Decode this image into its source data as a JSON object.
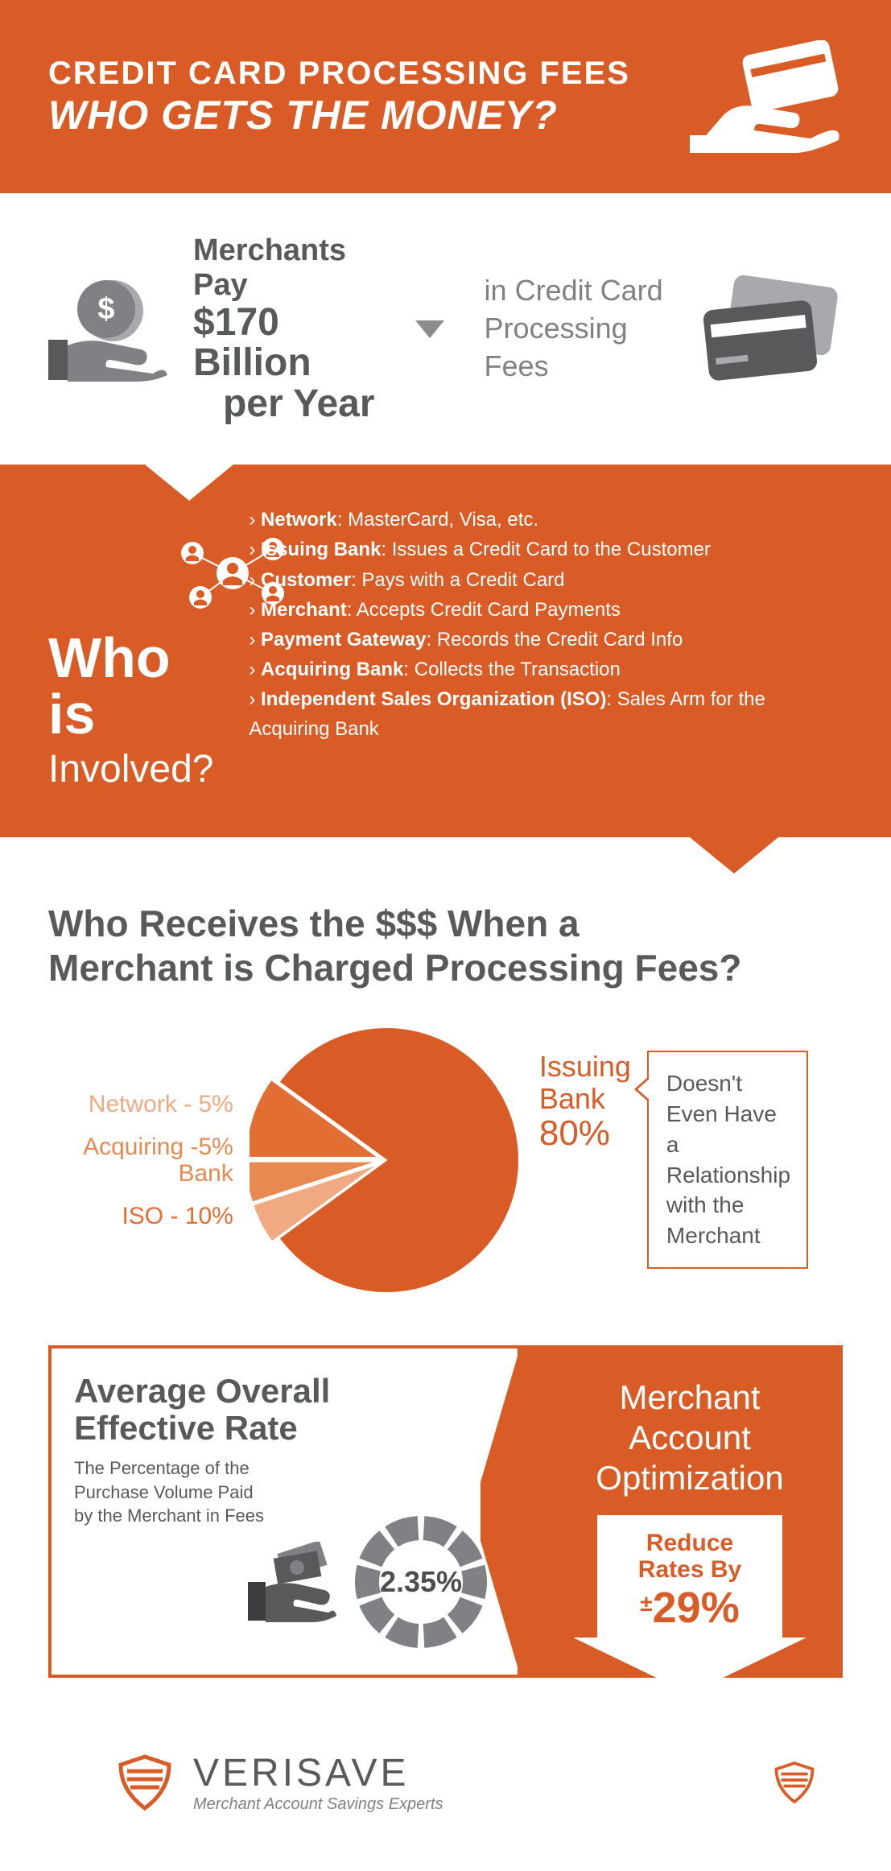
{
  "colors": {
    "orange": "#d95c27",
    "orange_light": "#e98952",
    "orange_lighter": "#f0a981",
    "orange_lightest": "#f7c9ae",
    "gray_dark": "#58595b",
    "gray_mid": "#808184",
    "gray_light": "#a7a9ac",
    "white": "#ffffff"
  },
  "header": {
    "line1": "CREDIT CARD PROCESSING FEES",
    "line2": "WHO GETS THE MONEY?"
  },
  "stat": {
    "line1": "Merchants Pay",
    "line2": "$170 Billion",
    "line3": "per Year",
    "right_line1": "in Credit Card",
    "right_line2": "Processing Fees"
  },
  "involved": {
    "title1": "Who is",
    "title2": "Involved?",
    "items": [
      {
        "term": "Network",
        "desc": ": MasterCard, Visa, etc."
      },
      {
        "term": "Issuing Bank",
        "desc": ": Issues a Credit Card to the Customer"
      },
      {
        "term": "Customer",
        "desc": ": Pays with a Credit Card"
      },
      {
        "term": "Merchant",
        "desc": ": Accepts Credit Card Payments"
      },
      {
        "term": "Payment Gateway",
        "desc": ": Records the Credit Card Info"
      },
      {
        "term": "Acquiring Bank",
        "desc": ": Collects the Transaction"
      },
      {
        "term": "Independent Sales Organization (ISO)",
        "desc": ": Sales Arm for the Acquiring Bank"
      }
    ]
  },
  "pie": {
    "title_line1": "Who Receives the $$$ When a",
    "title_line2": "Merchant is Charged Processing Fees?",
    "slices": [
      {
        "label": "Issuing Bank",
        "value": 80,
        "color": "#d95c27"
      },
      {
        "label": "ISO",
        "value": 10,
        "color": "#e26e33"
      },
      {
        "label": "Acquiring Bank",
        "value": 5,
        "color": "#e98952"
      },
      {
        "label": "Network",
        "value": 5,
        "color": "#f0a981"
      }
    ],
    "left_labels": {
      "network": "Network - 5%",
      "acq_line1": "Acquiring -5%",
      "acq_line2": "Bank",
      "iso": "ISO - 10%"
    },
    "right_label": {
      "name": "Issuing",
      "name2": "Bank",
      "pct": "80%"
    },
    "callout": "Doesn't Even Have a Relationship with the Merchant"
  },
  "rate": {
    "title_line1": "Average Overall",
    "title_line2": "Effective Rate",
    "desc": "The Percentage of the Purchase Volume Paid by the Merchant in Fees",
    "value": "2.35%",
    "donut_segments": 10,
    "donut_color": "#808184"
  },
  "optimization": {
    "title_line1": "Merchant",
    "title_line2": "Account",
    "title_line3": "Optimization",
    "reduce_line1": "Reduce",
    "reduce_line2": "Rates By",
    "reduce_value": "29%",
    "reduce_prefix": "±"
  },
  "footer": {
    "brand": "VERISAVE",
    "tagline": "Merchant Account Savings Experts"
  }
}
